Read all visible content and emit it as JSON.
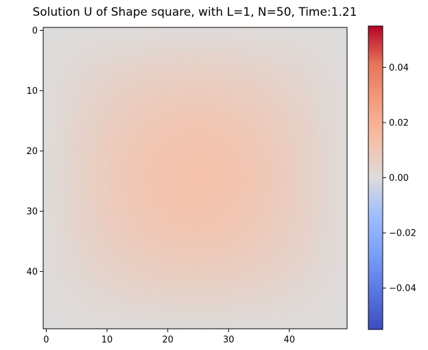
{
  "chart_data": {
    "type": "heatmap",
    "title": "Solution U of Shape square, with L=1, N=50, Time:1.21",
    "xlabel": "",
    "ylabel": "",
    "grid": {
      "rows": 50,
      "cols": 50
    },
    "xlim": [
      -0.5,
      49.5
    ],
    "ylim": [
      49.5,
      -0.5
    ],
    "x_ticks": [
      0,
      10,
      20,
      30,
      40
    ],
    "y_ticks": [
      0,
      10,
      20,
      30,
      40
    ],
    "colormap": "coolwarm",
    "color_range": [
      -0.055,
      0.055
    ],
    "colorbar_ticks": [
      0.04,
      0.02,
      0.0,
      -0.02,
      -0.04
    ],
    "colorbar_tick_labels": [
      "0.04",
      "0.02",
      "0.00",
      "−0.02",
      "−0.04"
    ],
    "field": {
      "description_of_values": "u(i,j) = peak * sin(pi*(i+1)/51) * sin(pi*(j+1)/51)",
      "peak": 0.0125,
      "center": [
        24.5,
        24.5
      ]
    },
    "colormap_stops": [
      [
        0.0,
        "#3b4cc0"
      ],
      [
        0.125,
        "#5977e3"
      ],
      [
        0.25,
        "#7b9ff9"
      ],
      [
        0.375,
        "#9ebeff"
      ],
      [
        0.5,
        "#dddcdc"
      ],
      [
        0.625,
        "#f6bfa6"
      ],
      [
        0.75,
        "#f59d7e"
      ],
      [
        0.875,
        "#e7745b"
      ],
      [
        1.0,
        "#b40426"
      ]
    ]
  }
}
